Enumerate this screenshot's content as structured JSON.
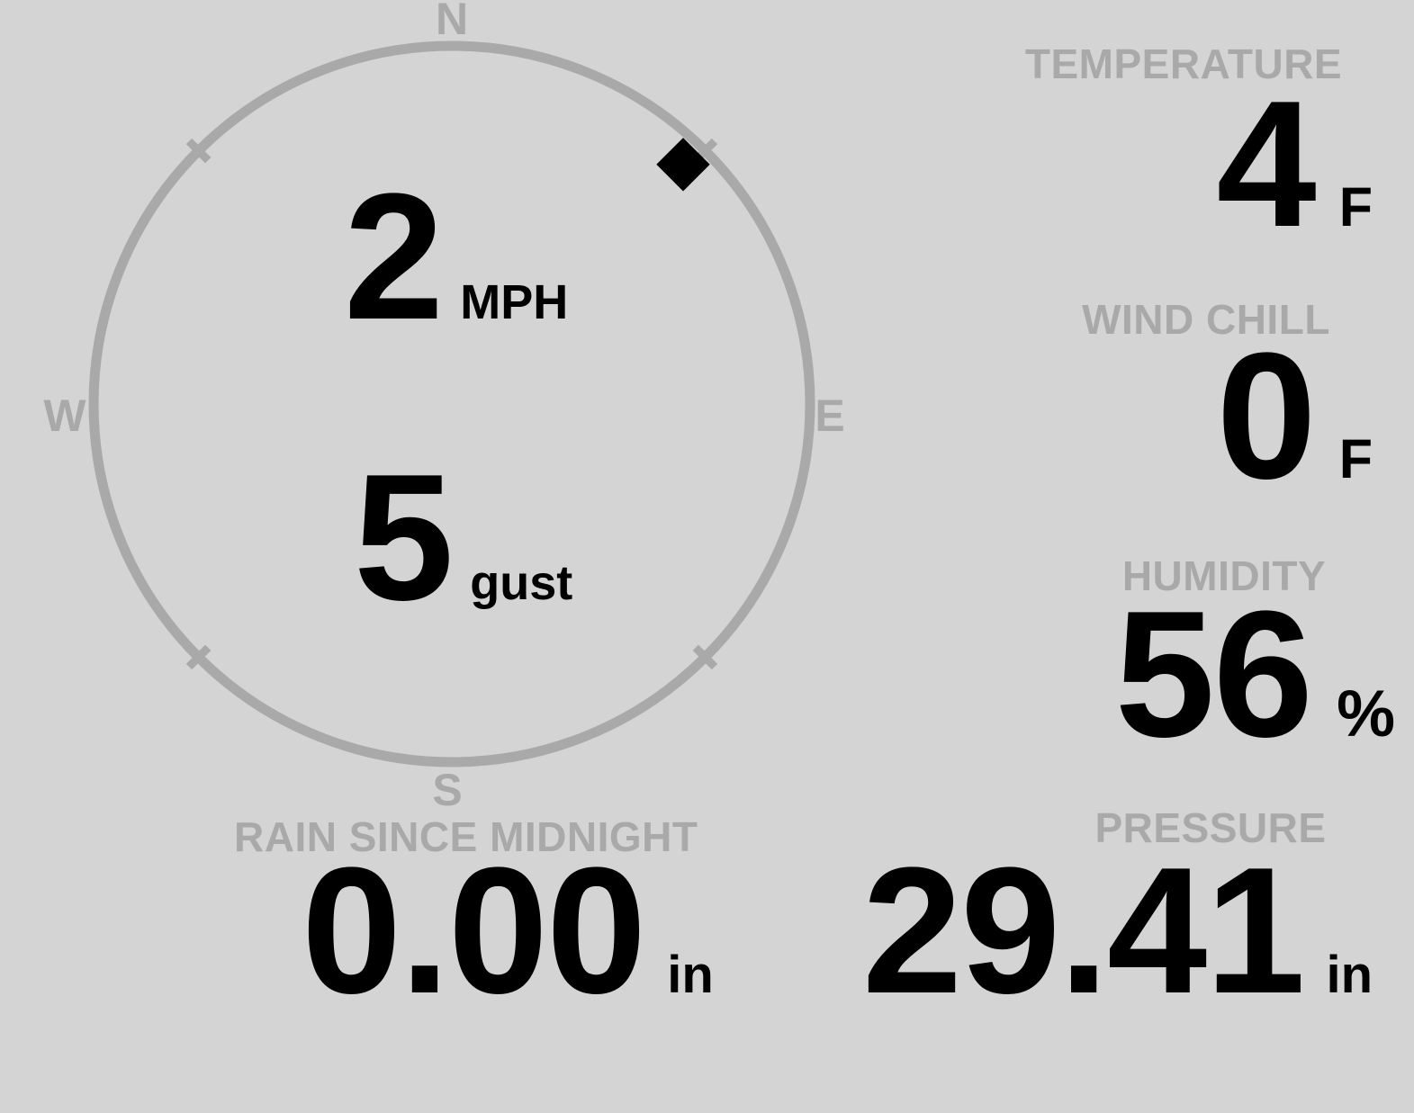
{
  "theme": {
    "background": "#d4d4d4",
    "label_color": "#a9a9a9",
    "ring_color": "#a9a9a9",
    "value_color": "#000000"
  },
  "compass": {
    "cardinals": {
      "north": "N",
      "east": "E",
      "south": "S",
      "west": "W"
    },
    "wind_speed": {
      "value": "2",
      "unit": "MPH"
    },
    "wind_gust": {
      "value": "5",
      "unit": "gust"
    },
    "direction_degrees": 44
  },
  "metrics": {
    "temperature": {
      "label": "TEMPERATURE",
      "value": "4",
      "unit": "F"
    },
    "wind_chill": {
      "label": "WIND CHILL",
      "value": "0",
      "unit": "F"
    },
    "humidity": {
      "label": "HUMIDITY",
      "value": "56",
      "unit": "%"
    },
    "rain_since_midnight": {
      "label": "RAIN SINCE MIDNIGHT",
      "value": "0.00",
      "unit": "in"
    },
    "pressure": {
      "label": "PRESSURE",
      "value": "29.41",
      "unit": "in"
    }
  }
}
